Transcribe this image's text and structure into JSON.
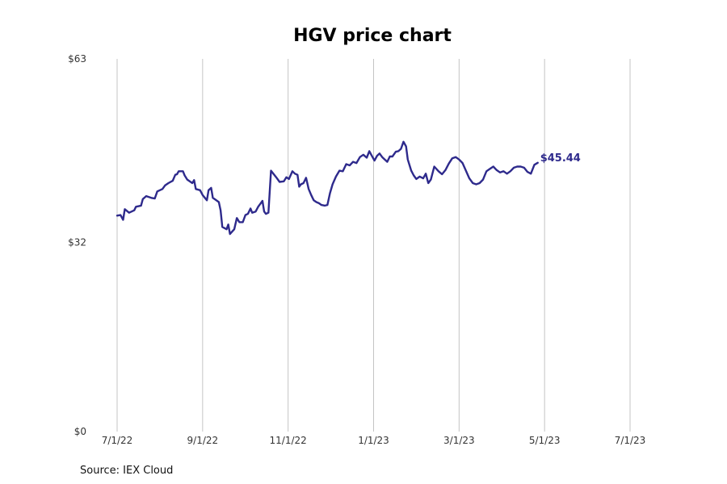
{
  "chart_data": {
    "type": "line",
    "title": "HGV price chart",
    "source": "Source: IEX Cloud",
    "ylim": [
      0,
      63
    ],
    "y_ticks": [
      {
        "value": 0,
        "label": "$0"
      },
      {
        "value": 32,
        "label": "$32"
      },
      {
        "value": 63,
        "label": "$63"
      }
    ],
    "x_ticks": [
      {
        "index": 0,
        "label": "7/1/22"
      },
      {
        "index": 1,
        "label": "9/1/22"
      },
      {
        "index": 2,
        "label": "11/1/22"
      },
      {
        "index": 3,
        "label": "1/1/23"
      },
      {
        "index": 4,
        "label": "3/1/23"
      },
      {
        "index": 5,
        "label": "5/1/23"
      },
      {
        "index": 6,
        "label": "7/1/23"
      }
    ],
    "grid": {
      "x": true,
      "y": false
    },
    "last_label": "$45.44",
    "line_color": "#2e2a8c",
    "series": [
      {
        "name": "HGV",
        "points": [
          [
            0.0,
            36.5
          ],
          [
            0.04,
            36.6
          ],
          [
            0.07,
            35.8
          ],
          [
            0.09,
            37.6
          ],
          [
            0.14,
            37.0
          ],
          [
            0.2,
            37.4
          ],
          [
            0.22,
            38.0
          ],
          [
            0.28,
            38.2
          ],
          [
            0.3,
            39.3
          ],
          [
            0.34,
            39.8
          ],
          [
            0.4,
            39.5
          ],
          [
            0.44,
            39.4
          ],
          [
            0.47,
            40.6
          ],
          [
            0.53,
            41.0
          ],
          [
            0.56,
            41.6
          ],
          [
            0.6,
            42.0
          ],
          [
            0.65,
            42.4
          ],
          [
            0.68,
            43.4
          ],
          [
            0.7,
            43.5
          ],
          [
            0.72,
            44.0
          ],
          [
            0.77,
            44.0
          ],
          [
            0.79,
            43.3
          ],
          [
            0.82,
            42.6
          ],
          [
            0.88,
            42.0
          ],
          [
            0.9,
            42.5
          ],
          [
            0.92,
            41.0
          ],
          [
            0.97,
            40.8
          ],
          [
            1.0,
            40.0
          ],
          [
            1.05,
            39.1
          ],
          [
            1.07,
            40.8
          ],
          [
            1.1,
            41.2
          ],
          [
            1.12,
            39.5
          ],
          [
            1.15,
            39.2
          ],
          [
            1.19,
            38.8
          ],
          [
            1.21,
            37.4
          ],
          [
            1.23,
            34.6
          ],
          [
            1.28,
            34.2
          ],
          [
            1.3,
            35.0
          ],
          [
            1.32,
            33.4
          ],
          [
            1.37,
            34.2
          ],
          [
            1.4,
            36.1
          ],
          [
            1.43,
            35.4
          ],
          [
            1.47,
            35.4
          ],
          [
            1.5,
            36.6
          ],
          [
            1.53,
            36.8
          ],
          [
            1.56,
            37.7
          ],
          [
            1.58,
            37.0
          ],
          [
            1.62,
            37.2
          ],
          [
            1.65,
            38.0
          ],
          [
            1.68,
            38.6
          ],
          [
            1.7,
            39.0
          ],
          [
            1.72,
            37.2
          ],
          [
            1.74,
            36.8
          ],
          [
            1.77,
            37.0
          ],
          [
            1.8,
            44.1
          ],
          [
            1.86,
            43.0
          ],
          [
            1.9,
            42.2
          ],
          [
            1.95,
            42.3
          ],
          [
            1.98,
            43.0
          ],
          [
            2.01,
            42.7
          ],
          [
            2.05,
            44.0
          ],
          [
            2.08,
            43.6
          ],
          [
            2.11,
            43.4
          ],
          [
            2.13,
            41.4
          ],
          [
            2.15,
            41.8
          ],
          [
            2.18,
            42.0
          ],
          [
            2.21,
            42.9
          ],
          [
            2.24,
            41.0
          ],
          [
            2.27,
            40.0
          ],
          [
            2.3,
            39.1
          ],
          [
            2.33,
            38.8
          ],
          [
            2.36,
            38.6
          ],
          [
            2.39,
            38.3
          ],
          [
            2.43,
            38.2
          ],
          [
            2.46,
            38.3
          ],
          [
            2.49,
            40.3
          ],
          [
            2.52,
            41.8
          ],
          [
            2.56,
            43.1
          ],
          [
            2.6,
            44.1
          ],
          [
            2.64,
            44.0
          ],
          [
            2.68,
            45.2
          ],
          [
            2.72,
            45.0
          ],
          [
            2.76,
            45.6
          ],
          [
            2.8,
            45.4
          ],
          [
            2.84,
            46.4
          ],
          [
            2.88,
            46.8
          ],
          [
            2.92,
            46.3
          ],
          [
            2.95,
            47.4
          ],
          [
            2.98,
            46.6
          ],
          [
            3.01,
            45.8
          ],
          [
            3.04,
            46.6
          ],
          [
            3.07,
            47.0
          ],
          [
            3.1,
            46.4
          ],
          [
            3.13,
            46.0
          ],
          [
            3.16,
            45.6
          ],
          [
            3.19,
            46.5
          ],
          [
            3.22,
            46.5
          ],
          [
            3.26,
            47.3
          ],
          [
            3.29,
            47.4
          ],
          [
            3.32,
            47.8
          ],
          [
            3.35,
            49.0
          ],
          [
            3.38,
            48.2
          ],
          [
            3.4,
            46.0
          ],
          [
            3.44,
            44.1
          ],
          [
            3.47,
            43.3
          ],
          [
            3.5,
            42.7
          ],
          [
            3.54,
            43.1
          ],
          [
            3.58,
            42.8
          ],
          [
            3.61,
            43.6
          ],
          [
            3.64,
            42.0
          ],
          [
            3.67,
            42.6
          ],
          [
            3.71,
            44.8
          ],
          [
            3.76,
            44.0
          ],
          [
            3.8,
            43.5
          ],
          [
            3.84,
            44.2
          ],
          [
            3.88,
            45.3
          ],
          [
            3.92,
            46.2
          ],
          [
            3.96,
            46.4
          ],
          [
            4.0,
            46.0
          ],
          [
            4.04,
            45.4
          ],
          [
            4.08,
            44.1
          ],
          [
            4.12,
            42.8
          ],
          [
            4.16,
            42.0
          ],
          [
            4.2,
            41.8
          ],
          [
            4.24,
            42.0
          ],
          [
            4.28,
            42.6
          ],
          [
            4.32,
            44.0
          ],
          [
            4.36,
            44.4
          ],
          [
            4.4,
            44.8
          ],
          [
            4.44,
            44.2
          ],
          [
            4.48,
            43.8
          ],
          [
            4.52,
            44.0
          ],
          [
            4.56,
            43.6
          ],
          [
            4.6,
            44.0
          ],
          [
            4.64,
            44.6
          ],
          [
            4.68,
            44.8
          ],
          [
            4.72,
            44.8
          ],
          [
            4.76,
            44.6
          ],
          [
            4.8,
            43.9
          ],
          [
            4.84,
            43.6
          ],
          [
            4.88,
            45.1
          ],
          [
            4.92,
            45.44
          ]
        ]
      }
    ]
  }
}
